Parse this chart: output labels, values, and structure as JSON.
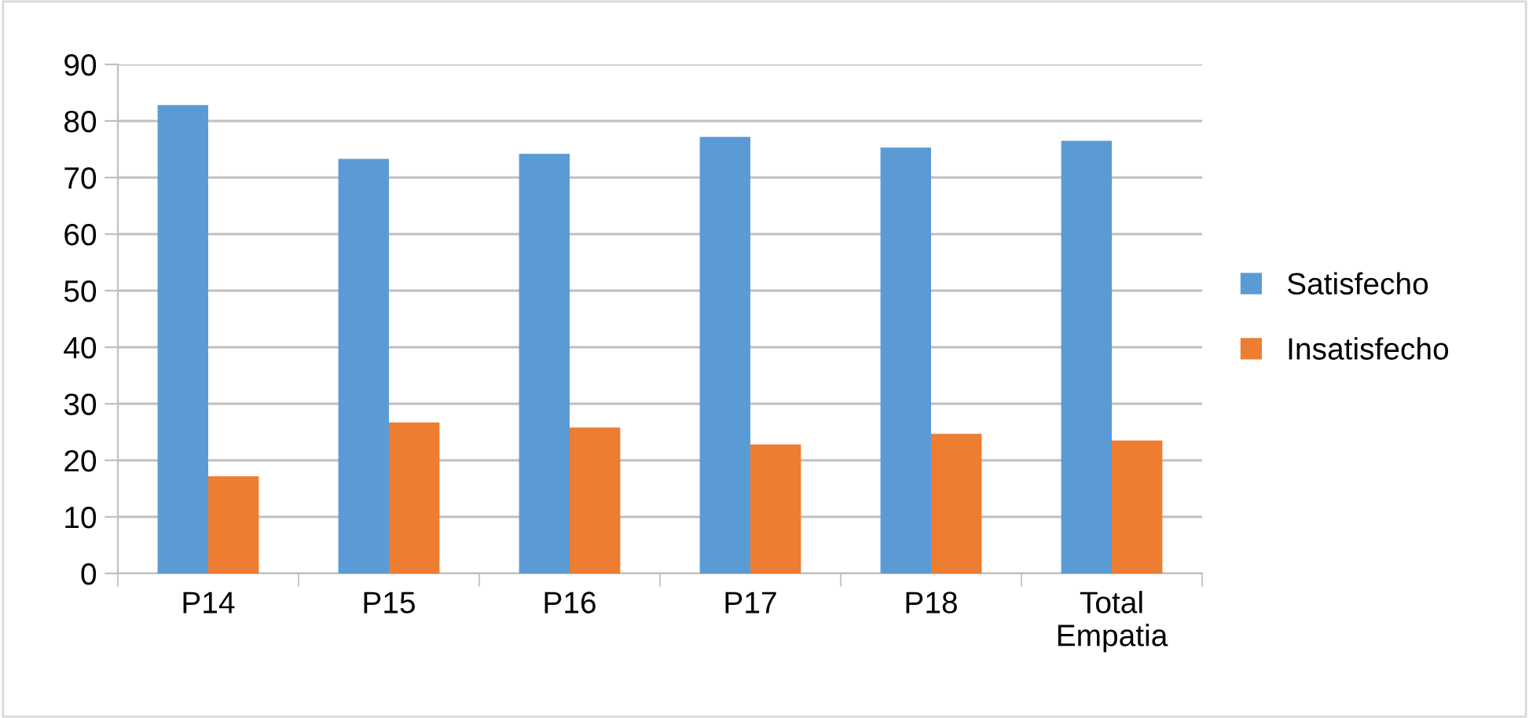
{
  "chart_data": {
    "type": "bar",
    "categories": [
      "P14",
      "P15",
      "P16",
      "P17",
      "P18",
      "Total\nEmpatia"
    ],
    "series": [
      {
        "name": "Satisfecho",
        "color": "#5b9bd5",
        "values": [
          82.8,
          73.3,
          74.2,
          77.2,
          75.3,
          76.5
        ]
      },
      {
        "name": "Insatisfecho",
        "color": "#ed7d31",
        "values": [
          17.2,
          26.7,
          25.8,
          22.8,
          24.7,
          23.5
        ]
      }
    ],
    "ylim": [
      0,
      90
    ],
    "yticks": [
      0,
      10,
      20,
      30,
      40,
      50,
      60,
      70,
      80,
      90
    ],
    "grid": "y",
    "legend": "right"
  }
}
